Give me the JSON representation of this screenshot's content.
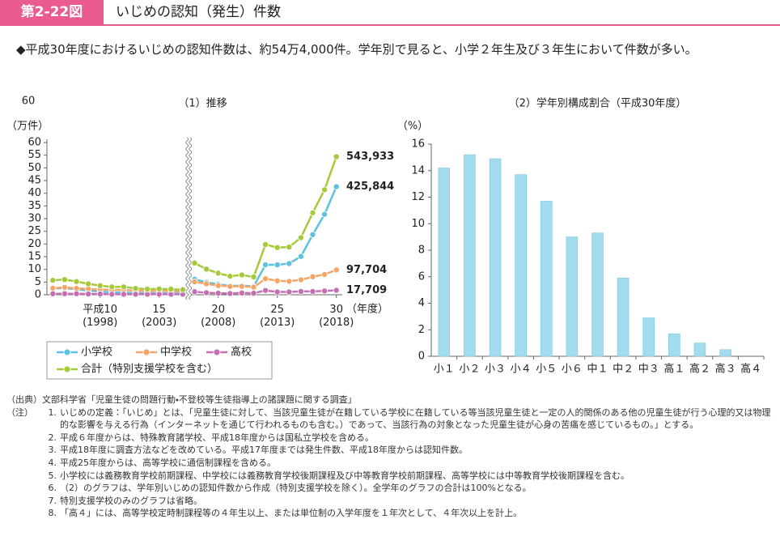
{
  "header": {
    "badge": "第2-22図",
    "title": "いじめの認知（発生）件数"
  },
  "summary": "◆平成30年度におけるいじめの認知件数は、約54万4,000件。学年別で見ると、小学２年生及び３年生において件数が多い。",
  "chart_data": [
    {
      "type": "line",
      "title": "（1）推移",
      "top_label": "60",
      "y_label": "（万件）",
      "x_label": "（年度）",
      "x": [
        1994,
        1995,
        1996,
        1997,
        1998,
        1999,
        2000,
        2001,
        2002,
        2003,
        2004,
        2005,
        2006,
        2007,
        2008,
        2009,
        2010,
        2011,
        2012,
        2013,
        2014,
        2015,
        2016,
        2017,
        2018
      ],
      "xlim": [
        1993.5,
        2018.5
      ],
      "xticks": [
        {
          "value": 1998,
          "label": "平成10\n(1998)"
        },
        {
          "value": 2003,
          "label": "15\n(2003)"
        },
        {
          "value": 2008,
          "label": "20\n(2008)"
        },
        {
          "value": 2013,
          "label": "25\n(2013)"
        },
        {
          "value": 2018,
          "label": "30\n(2018)"
        }
      ],
      "x_break": [
        2005,
        2006
      ],
      "ylim": [
        0,
        60
      ],
      "yticks": [
        0,
        5,
        10,
        15,
        20,
        25,
        30,
        35,
        40,
        45,
        50,
        55,
        60
      ],
      "grid": false,
      "series": [
        {
          "name": "小学校",
          "color": "#5ec1e0",
          "values": [
            2.5,
            2.6,
            2.2,
            1.6,
            1.3,
            0.9,
            0.9,
            0.6,
            0.6,
            0.6,
            0.5,
            0.5,
            6.1,
            4.9,
            4.1,
            3.5,
            3.6,
            3.3,
            11.8,
            11.8,
            12.3,
            15.1,
            23.7,
            31.7,
            42.5844
          ],
          "value_labels": [
            null,
            null,
            null,
            null,
            null,
            null,
            null,
            null,
            null,
            null,
            null,
            null,
            null,
            null,
            null,
            null,
            null,
            null,
            null,
            null,
            null,
            null,
            null,
            null,
            "425,844"
          ]
        },
        {
          "name": "中学校",
          "color": "#f5a567",
          "values": [
            2.6,
            2.9,
            2.5,
            2.3,
            2.0,
            1.9,
            1.9,
            1.6,
            1.4,
            1.5,
            1.4,
            1.3,
            5.1,
            4.3,
            3.6,
            3.3,
            3.3,
            3.0,
            6.3,
            5.5,
            5.3,
            5.9,
            7.1,
            8.0,
            9.7704
          ],
          "value_labels": [
            null,
            null,
            null,
            null,
            null,
            null,
            null,
            null,
            null,
            null,
            null,
            null,
            null,
            null,
            null,
            null,
            null,
            null,
            null,
            null,
            null,
            null,
            null,
            null,
            "97,704"
          ]
        },
        {
          "name": "高校",
          "color": "#c46fb4",
          "values": [
            0.4,
            0.4,
            0.4,
            0.3,
            0.3,
            0.2,
            0.2,
            0.2,
            0.2,
            0.2,
            0.2,
            0.2,
            1.2,
            0.8,
            0.6,
            0.5,
            0.7,
            0.6,
            1.7,
            1.1,
            1.1,
            1.3,
            1.3,
            1.5,
            1.7709
          ],
          "value_labels": [
            null,
            null,
            null,
            null,
            null,
            null,
            null,
            null,
            null,
            null,
            null,
            null,
            null,
            null,
            null,
            null,
            null,
            null,
            null,
            null,
            null,
            null,
            null,
            null,
            "17,709"
          ]
        },
        {
          "name": "合計（特別支援学校を含む）",
          "color": "#a5c93a",
          "values": [
            5.7,
            6.0,
            5.2,
            4.3,
            3.6,
            3.1,
            3.1,
            2.5,
            2.2,
            2.3,
            2.2,
            2.0,
            12.5,
            10.1,
            8.5,
            7.3,
            7.8,
            7.0,
            19.8,
            18.6,
            18.8,
            22.5,
            32.3,
            41.4,
            54.3933
          ],
          "value_labels": [
            null,
            null,
            null,
            null,
            null,
            null,
            null,
            null,
            null,
            null,
            null,
            null,
            null,
            null,
            null,
            null,
            null,
            null,
            null,
            null,
            null,
            null,
            null,
            null,
            "543,933"
          ]
        }
      ]
    },
    {
      "type": "bar",
      "title": "（2）学年別構成割合（平成30年度）",
      "y_label": "（%）",
      "categories": [
        "小１",
        "小２",
        "小３",
        "小４",
        "小５",
        "小６",
        "中１",
        "中２",
        "中３",
        "高１",
        "高２",
        "高３",
        "高４"
      ],
      "values": [
        14.2,
        15.2,
        14.9,
        13.7,
        11.7,
        9.0,
        9.3,
        5.9,
        2.9,
        1.7,
        1.0,
        0.5,
        0
      ],
      "color": "#a3dbee",
      "ylim": [
        0,
        16
      ],
      "yticks": [
        0,
        2,
        4,
        6,
        8,
        10,
        12,
        14,
        16
      ],
      "grid": false
    }
  ],
  "footnotes": {
    "source": {
      "label": "（出典）",
      "text": "文部科学省「児童生徒の問題行動・不登校等生徒指導上の諸課題に関する調査」"
    },
    "notes_label": "（注）",
    "notes": [
      {
        "num": "1.",
        "text": "いじめの定義：「いじめ」とは、「児童生徒に対して、当該児童生徒が在籍している学校に在籍している等当該児童生徒と一定の人的関係のある他の児童生徒が行う心理的又は物理的な影響を与える行為（インターネットを通じて行われるものも含む。）であって、当該行為の対象となった児童生徒が心身の苦痛を感じているもの。」とする。"
      },
      {
        "num": "2.",
        "text": "平成６年度からは、特殊教育諸学校、平成18年度からは国私立学校を含める。"
      },
      {
        "num": "3.",
        "text": "平成18年度に調査方法などを改めている。平成17年度までは発生件数、平成18年度からは認知件数。"
      },
      {
        "num": "4.",
        "text": "平成25年度からは、高等学校に通信制課程を含める。"
      },
      {
        "num": "5.",
        "text": "小学校には義務教育学校前期課程、中学校には義務教育学校後期課程及び中等教育学校前期課程、高等学校には中等教育学校後期課程を含む。"
      },
      {
        "num": "6.",
        "text": "（2）のグラフは、学年別いじめの認知件数から作成（特別支援学校を除く）。全学年のグラフの合計は100%となる。"
      },
      {
        "num": "7.",
        "text": "特別支援学校のみのグラフは省略。"
      },
      {
        "num": "8.",
        "text": "「高４」には、高等学校定時制課程等の４年生以上、または単位制の入学年度を１年次として、４年次以上を計上。"
      }
    ]
  }
}
